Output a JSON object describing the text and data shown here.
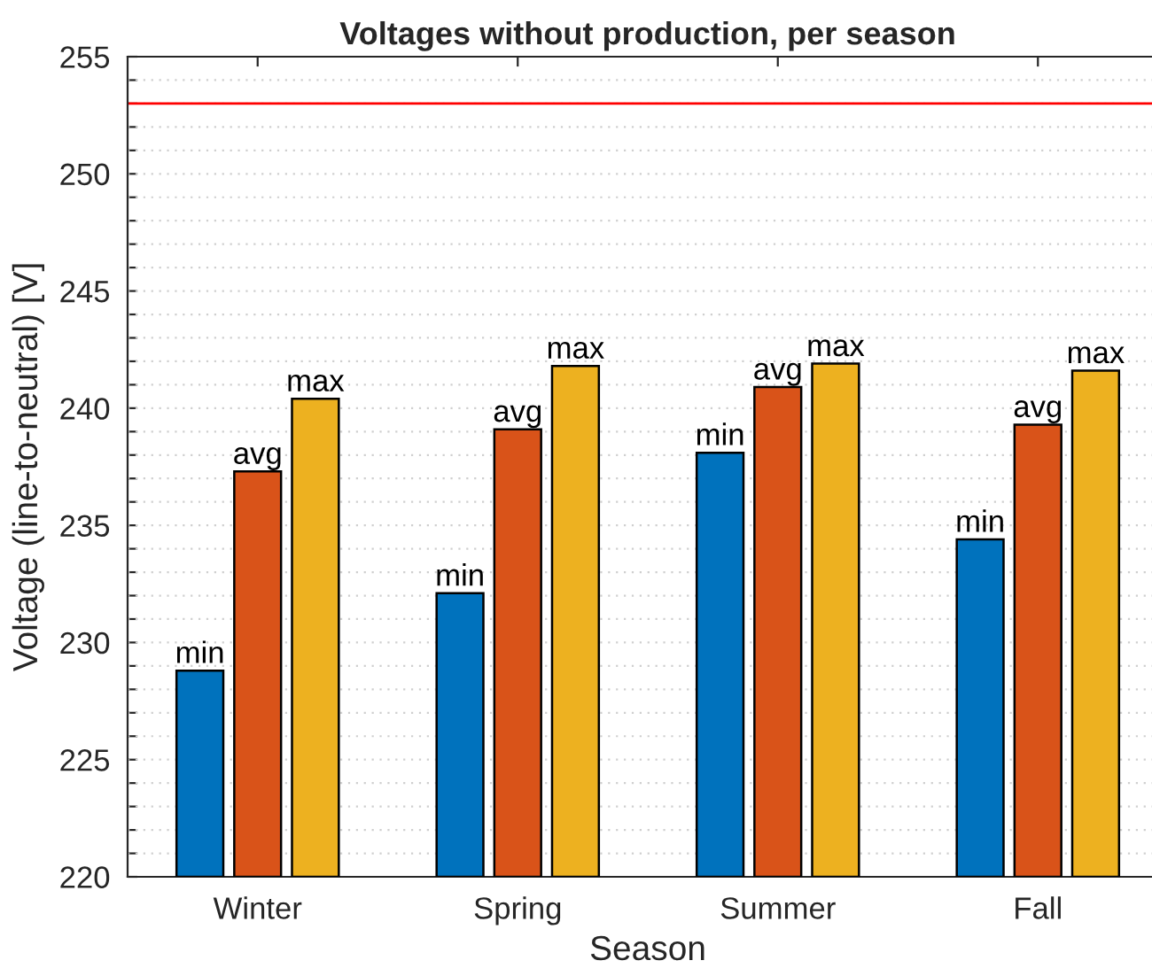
{
  "chart_data": {
    "type": "bar",
    "title": "Voltages without production, per season",
    "xlabel": "Season",
    "ylabel": "Voltage (line-to-neutral) [V]",
    "categories": [
      "Winter",
      "Spring",
      "Summer",
      "Fall"
    ],
    "series": [
      {
        "name": "min",
        "color": "#0072bd",
        "values": [
          228.8,
          232.1,
          238.1,
          234.4
        ]
      },
      {
        "name": "avg",
        "color": "#d95319",
        "values": [
          237.3,
          239.1,
          240.9,
          239.3
        ]
      },
      {
        "name": "max",
        "color": "#edb120",
        "values": [
          240.4,
          241.8,
          241.9,
          241.6
        ]
      }
    ],
    "ylim": [
      220,
      255
    ],
    "yticks": [
      220,
      {
        "value": 221,
        "label": null
      },
      {
        "value": 222,
        "label": null
      },
      {
        "value": 223,
        "label": null
      },
      {
        "value": 224,
        "label": null
      },
      225,
      {
        "value": 226,
        "label": null
      },
      {
        "value": 227,
        "label": null
      },
      {
        "value": 228,
        "label": null
      },
      {
        "value": 229,
        "label": null
      },
      230,
      {
        "value": 231,
        "label": null
      },
      {
        "value": 232,
        "label": null
      },
      {
        "value": 233,
        "label": null
      },
      {
        "value": 234,
        "label": null
      },
      235,
      {
        "value": 236,
        "label": null
      },
      {
        "value": 237,
        "label": null
      },
      {
        "value": 238,
        "label": null
      },
      {
        "value": 239,
        "label": null
      },
      240,
      {
        "value": 241,
        "label": null
      },
      {
        "value": 242,
        "label": null
      },
      {
        "value": 243,
        "label": null
      },
      {
        "value": 244,
        "label": null
      },
      245,
      {
        "value": 246,
        "label": null
      },
      {
        "value": 247,
        "label": null
      },
      {
        "value": 248,
        "label": null
      },
      {
        "value": 249,
        "label": null
      },
      250,
      {
        "value": 251,
        "label": null
      },
      {
        "value": 252,
        "label": null
      },
      {
        "value": 253,
        "label": null
      },
      {
        "value": 254,
        "label": null
      },
      255
    ],
    "grid": "y",
    "legend": false,
    "ref_lines": [
      {
        "axis": "y",
        "value": 253,
        "color": "#ff0000"
      }
    ]
  }
}
